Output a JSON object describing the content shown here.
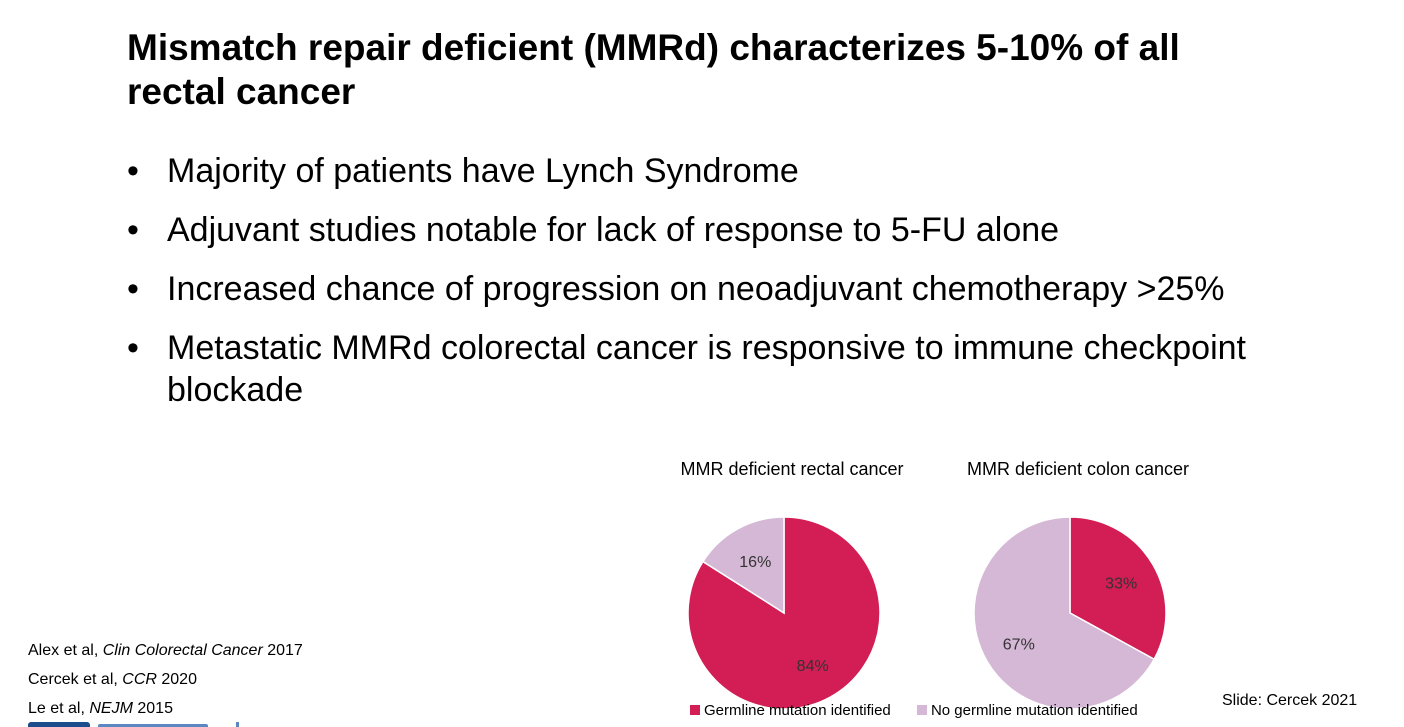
{
  "slide": {
    "title": "Mismatch repair deficient (MMRd) characterizes 5-10% of all rectal cancer",
    "bullets": [
      "Majority of patients have Lynch Syndrome",
      "Adjuvant studies notable for lack of response to 5-FU alone",
      "Increased chance of progression on neoadjuvant chemotherapy >25%",
      "Metastatic MMRd colorectal cancer is responsive to immune checkpoint blockade"
    ],
    "bullet_glyph": "•"
  },
  "references": [
    {
      "authors": "Alex et al, ",
      "journal": "Clin Colorectal Cancer",
      "year": " 2017"
    },
    {
      "authors": "Cercek et al, ",
      "journal": "CCR",
      "year": " 2020"
    },
    {
      "authors": "Le et al, ",
      "journal": "NEJM",
      "year": " 2015"
    }
  ],
  "footer": {
    "credit": "Slide: Cercek 2021"
  },
  "chart_data": [
    {
      "type": "pie",
      "title": "MMR deficient rectal cancer",
      "categories": [
        "Germline mutation identified",
        "No germline mutation identified"
      ],
      "values": [
        84,
        16
      ],
      "labels": [
        "84%",
        "16%"
      ],
      "colors": [
        "#D21E55",
        "#D5B7D6"
      ],
      "legend": "bottom"
    },
    {
      "type": "pie",
      "title": "MMR deficient colon cancer",
      "categories": [
        "Germline mutation identified",
        "No germline mutation identified"
      ],
      "values": [
        33,
        67
      ],
      "labels": [
        "33%",
        "67%"
      ],
      "colors": [
        "#D21E55",
        "#D5B7D6"
      ],
      "legend": "bottom"
    }
  ],
  "legend": [
    {
      "label": "Germline mutation identified",
      "color": "#D21E55"
    },
    {
      "label": "No germline mutation identified",
      "color": "#D5B7D6"
    }
  ]
}
